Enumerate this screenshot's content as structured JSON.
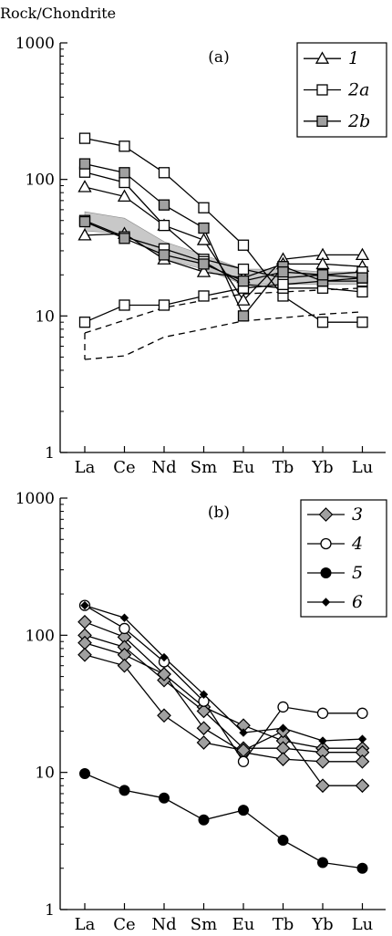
{
  "ylabel": "Rock/Chondrite",
  "chart_data": [
    {
      "type": "line",
      "title": "(a)",
      "ylabel": "Rock/Chondrite",
      "xlabel": "",
      "yscale": "log",
      "ylim": [
        1,
        1000
      ],
      "yticks": [
        "1",
        "10",
        "100",
        "1000"
      ],
      "categories": [
        "La",
        "Ce",
        "Nd",
        "Sm",
        "Eu",
        "Tb",
        "Yb",
        "Lu"
      ],
      "legend_position": "top-right",
      "legend": [
        {
          "label": "1",
          "marker": "triangle-open"
        },
        {
          "label": "2a",
          "marker": "square-open"
        },
        {
          "label": "2b",
          "marker": "square-gray"
        }
      ],
      "series": [
        {
          "group": "1",
          "marker": "triangle-open",
          "values": [
            88,
            75,
            46,
            36,
            13,
            26,
            28,
            28
          ]
        },
        {
          "group": "1",
          "marker": "triangle-open",
          "values": [
            39,
            40,
            26,
            21,
            19,
            24,
            24,
            23
          ]
        },
        {
          "group": "2a",
          "marker": "square-open",
          "values": [
            200,
            175,
            112,
            62,
            33,
            14,
            9,
            9
          ]
        },
        {
          "group": "2a",
          "marker": "square-open",
          "values": [
            113,
            95,
            46,
            26,
            22,
            19,
            20,
            21
          ]
        },
        {
          "group": "2a",
          "marker": "square-open",
          "values": [
            50,
            38,
            31,
            25,
            17,
            16,
            16,
            15
          ]
        },
        {
          "group": "2a",
          "marker": "square-open",
          "values": [
            9,
            12,
            12,
            14,
            16,
            17,
            18,
            18
          ]
        },
        {
          "group": "2b",
          "marker": "square-gray",
          "values": [
            130,
            112,
            65,
            44,
            10,
            23,
            18,
            19
          ]
        },
        {
          "group": "2b",
          "marker": "square-gray",
          "values": [
            49,
            37,
            28,
            24,
            18,
            21,
            20,
            19
          ]
        }
      ],
      "bands": [
        {
          "style": "gray-fill",
          "upper": [
            58,
            52,
            35,
            28,
            22,
            22,
            21,
            21
          ],
          "lower": [
            42,
            40,
            26,
            22,
            17,
            17,
            17,
            17
          ]
        }
      ],
      "outlines": [
        {
          "style": "dashed",
          "upper": [
            7.5,
            9.3,
            11.5,
            13,
            14.5,
            15,
            15.5,
            16
          ],
          "lower": [
            4.8,
            5.1,
            7,
            8,
            9.2,
            9.7,
            10.3,
            10.7
          ]
        }
      ]
    },
    {
      "type": "line",
      "title": "(b)",
      "ylabel": "",
      "xlabel": "",
      "yscale": "log",
      "ylim": [
        1,
        1000
      ],
      "yticks": [
        "1",
        "10",
        "100",
        "1000"
      ],
      "categories": [
        "La",
        "Ce",
        "Nd",
        "Sm",
        "Eu",
        "Tb",
        "Yb",
        "Lu"
      ],
      "legend_position": "top-right",
      "legend": [
        {
          "label": "3",
          "marker": "diamond-gray"
        },
        {
          "label": "4",
          "marker": "circle-open"
        },
        {
          "label": "5",
          "marker": "circle-filled"
        },
        {
          "label": "6",
          "marker": "diamond-small-black"
        }
      ],
      "series": [
        {
          "group": "3",
          "marker": "diamond-gray",
          "values": [
            125,
            97,
            52,
            30,
            22,
            17,
            15,
            15
          ]
        },
        {
          "group": "3",
          "marker": "diamond-gray",
          "values": [
            100,
            82,
            47,
            28,
            15,
            15,
            14,
            14
          ]
        },
        {
          "group": "3",
          "marker": "diamond-gray",
          "values": [
            88,
            72,
            52,
            21,
            14,
            12.5,
            12,
            12
          ]
        },
        {
          "group": "3",
          "marker": "diamond-gray",
          "values": [
            72,
            60,
            26,
            16.5,
            14.5,
            20,
            8,
            8
          ]
        },
        {
          "group": "4",
          "marker": "circle-open",
          "values": [
            165,
            112,
            64,
            33,
            12,
            30,
            27,
            27
          ]
        },
        {
          "group": "5",
          "marker": "circle-filled",
          "values": [
            9.8,
            7.4,
            6.5,
            4.5,
            5.3,
            3.2,
            2.2,
            2
          ]
        },
        {
          "group": "6",
          "marker": "diamond-small-black",
          "values": [
            165,
            134,
            69,
            37,
            19.5,
            21,
            17,
            17.5
          ]
        }
      ]
    }
  ]
}
